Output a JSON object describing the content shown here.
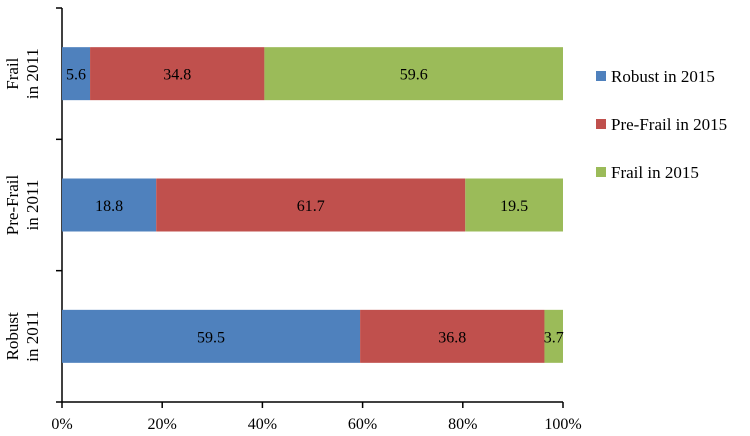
{
  "chart_data": {
    "type": "bar",
    "orientation": "horizontal",
    "stacked": true,
    "title": "",
    "xlabel": "",
    "ylabel": "",
    "categories": [
      [
        "Frail",
        "in 2011"
      ],
      [
        "Pre-Frail",
        "in 2011"
      ],
      [
        "Robust",
        "in 2011"
      ]
    ],
    "series": [
      {
        "name": "Robust in 2015",
        "color": "#4f81bd",
        "values": [
          5.6,
          18.8,
          59.5
        ]
      },
      {
        "name": "Pre-Frail in 2015",
        "color": "#c0504d",
        "values": [
          34.8,
          61.7,
          36.8
        ]
      },
      {
        "name": "Frail in 2015",
        "color": "#9bbb59",
        "values": [
          59.6,
          19.5,
          3.7
        ]
      }
    ],
    "xlim": [
      0,
      100
    ],
    "xticks": [
      "0%",
      "20%",
      "40%",
      "60%",
      "80%",
      "100%"
    ],
    "legend_position": "right",
    "grid": false
  }
}
